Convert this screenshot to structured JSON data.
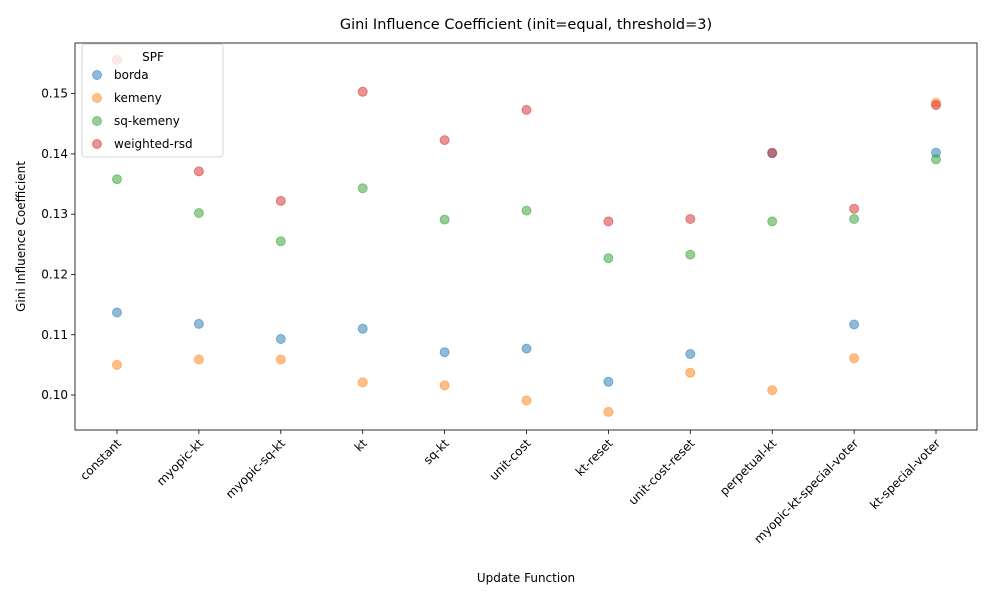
{
  "chart_data": {
    "type": "scatter",
    "title": "Gini Influence Coefficient (init=equal, threshold=3)",
    "xlabel": "Update Function",
    "ylabel": "Gini Influence Coefficient",
    "categories": [
      "constant",
      "myopic-kt",
      "myopic-sq-kt",
      "kt",
      "sq-kt",
      "unit-cost",
      "kt-reset",
      "unit-cost-reset",
      "perpetual-kt",
      "myopic-kt-special-voter",
      "kt-special-voter"
    ],
    "ylim": [
      0.0942,
      0.1584
    ],
    "yticks": [
      0.1,
      0.11,
      0.12,
      0.13,
      0.14,
      0.15
    ],
    "ytick_labels": [
      "0.10",
      "0.11",
      "0.12",
      "0.13",
      "0.14",
      "0.15"
    ],
    "grid": false,
    "legend": {
      "title": "SPF",
      "placement": "top-left"
    },
    "series": [
      {
        "name": "borda",
        "color": "#1f77b4",
        "values": [
          0.1137,
          0.1118,
          0.1093,
          0.111,
          0.1071,
          0.1077,
          0.1022,
          0.1068,
          0.1401,
          0.1117,
          0.1402
        ]
      },
      {
        "name": "kemeny",
        "color": "#ff7f0e",
        "values": [
          0.105,
          0.1059,
          0.1059,
          0.1021,
          0.1016,
          0.0991,
          0.0972,
          0.1037,
          0.1008,
          0.1061,
          0.1485
        ]
      },
      {
        "name": "sq-kemeny",
        "color": "#2ca02c",
        "values": [
          0.1358,
          0.1302,
          0.1255,
          0.1343,
          0.1291,
          0.1306,
          0.1227,
          0.1233,
          0.1288,
          0.1292,
          0.1391
        ]
      },
      {
        "name": "weighted-rsd",
        "color": "#d62728",
        "values": [
          0.1556,
          0.1371,
          0.1322,
          0.1503,
          0.1423,
          0.1473,
          0.1288,
          0.1292,
          0.1402,
          0.1309,
          0.1481
        ]
      }
    ]
  }
}
